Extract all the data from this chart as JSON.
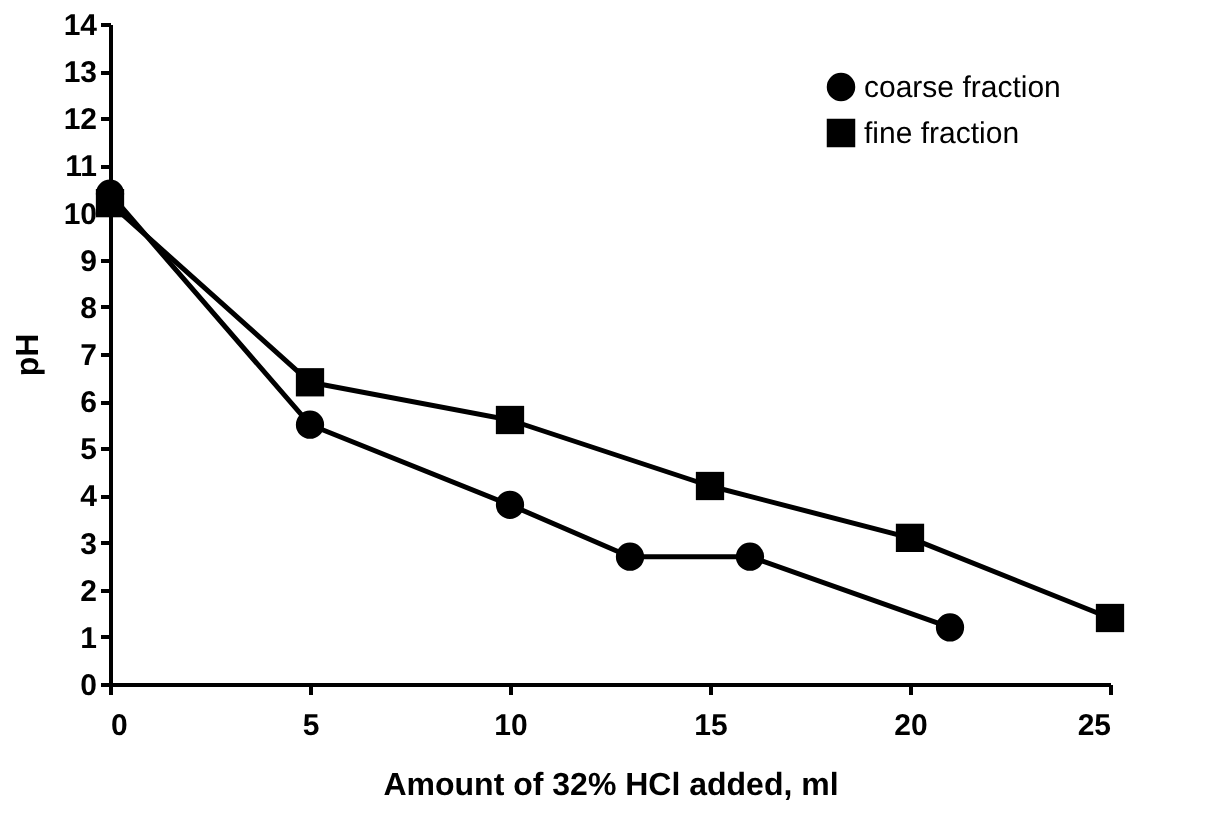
{
  "chart_data": {
    "type": "line",
    "xlabel": "Amount of 32% HCl added, ml",
    "ylabel": "pH",
    "xlim": [
      0,
      25
    ],
    "xticks": [
      0,
      5,
      10,
      15,
      20,
      25
    ],
    "ylim": [
      0,
      14
    ],
    "yticks": [
      0,
      1,
      2,
      3,
      4,
      5,
      6,
      7,
      8,
      9,
      10,
      11,
      12,
      13,
      14
    ],
    "grid": false,
    "legend": "top right",
    "line_style": "solid",
    "series": [
      {
        "name": "coarse fraction",
        "color": "#000000",
        "marker": "circle",
        "x": [
          0,
          5,
          10,
          13,
          16,
          21
        ],
        "values": [
          10.4,
          5.5,
          3.8,
          2.7,
          2.7,
          1.2
        ]
      },
      {
        "name": "fine fraction",
        "color": "#000000",
        "marker": "square",
        "x": [
          0,
          5,
          10,
          15,
          20,
          25
        ],
        "values": [
          10.2,
          6.4,
          5.6,
          4.2,
          3.1,
          1.4
        ]
      }
    ]
  }
}
